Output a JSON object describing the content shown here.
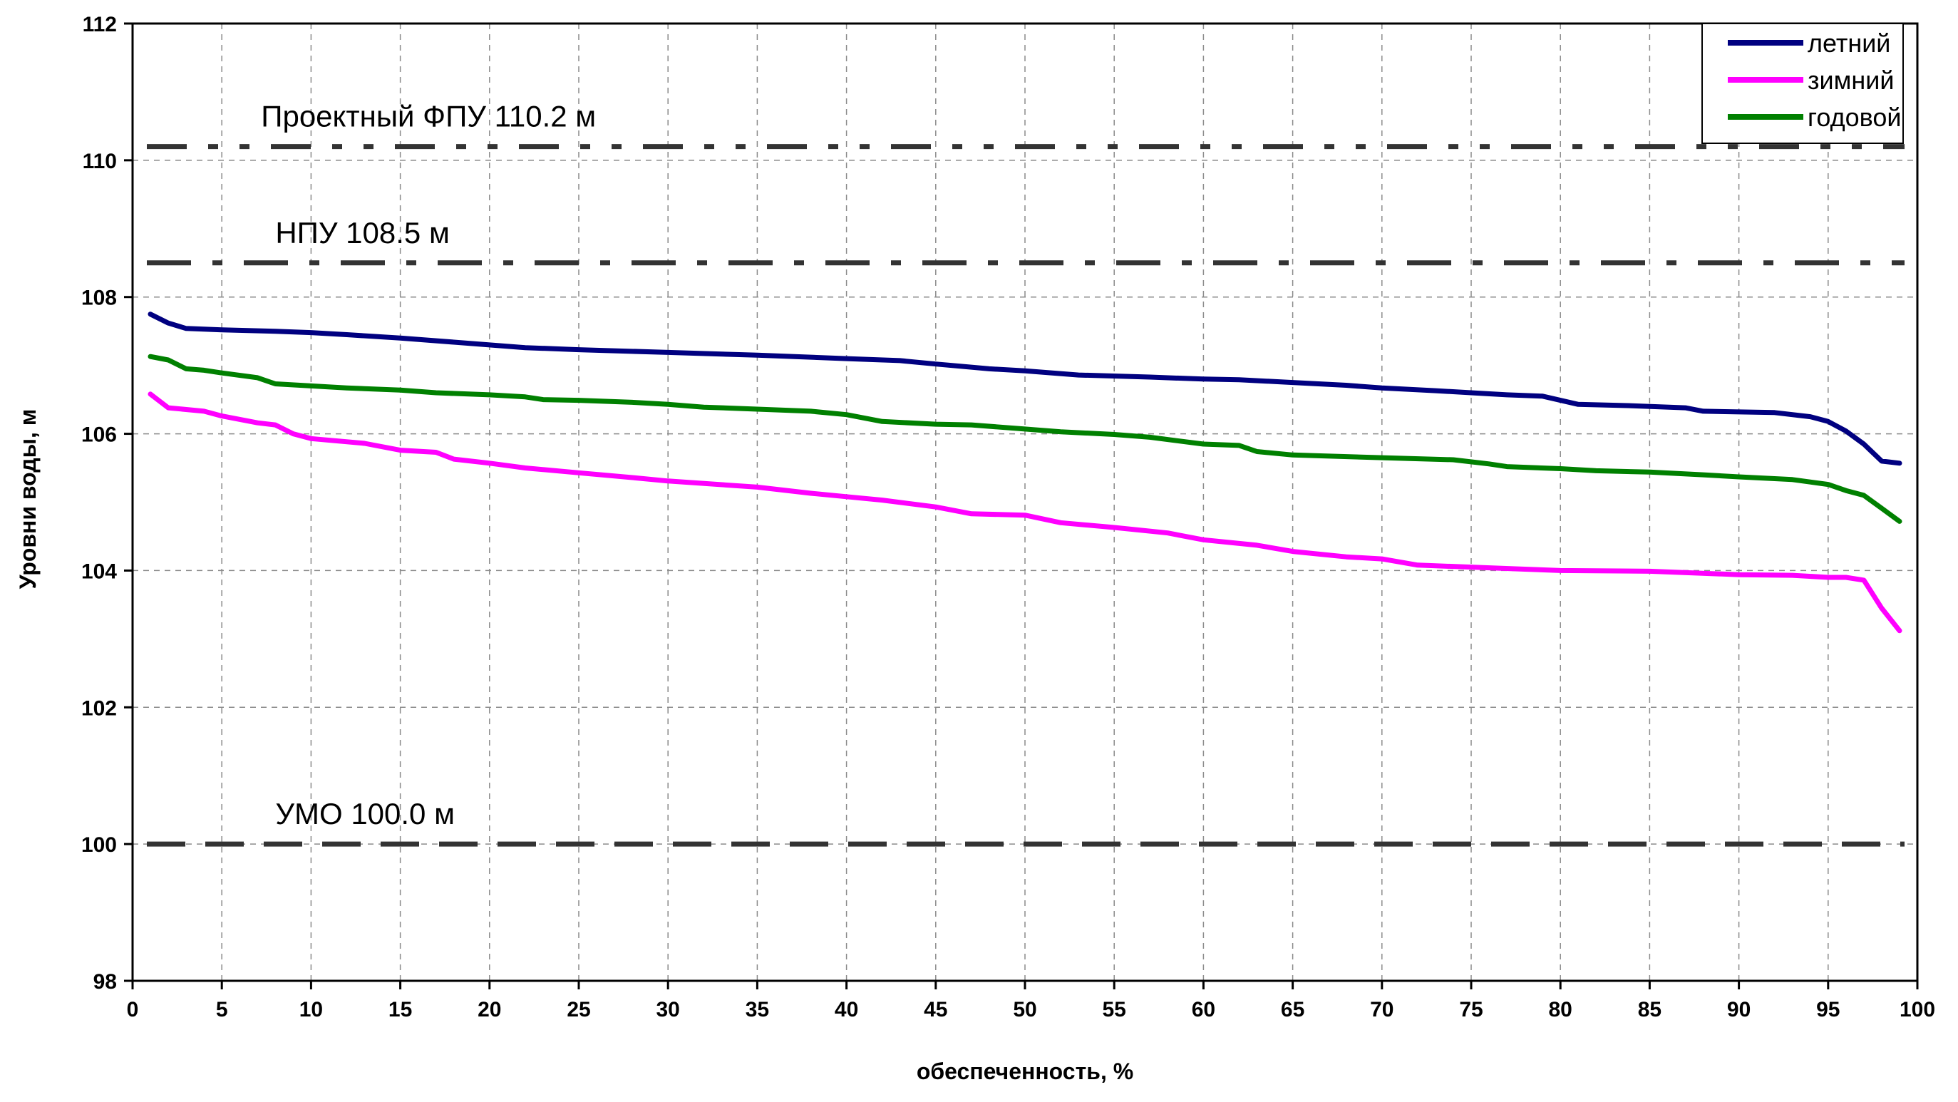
{
  "chart_data": {
    "type": "line",
    "xlabel": "обеспеченность, %",
    "ylabel": "Уровни воды, м",
    "xlim": [
      0,
      100
    ],
    "ylim": [
      98,
      112
    ],
    "xticks": [
      0,
      5,
      10,
      15,
      20,
      25,
      30,
      35,
      40,
      45,
      50,
      55,
      60,
      65,
      70,
      75,
      80,
      85,
      90,
      95,
      100
    ],
    "yticks": [
      98,
      100,
      102,
      104,
      106,
      108,
      110,
      112
    ],
    "grid": true,
    "legend_position": "top-right",
    "reference_lines": [
      {
        "label": "Проектный ФПУ 110.2 м",
        "y": 110.2,
        "style": "dash-dot-dot",
        "color": "#333333"
      },
      {
        "label": "НПУ 108.5 м",
        "y": 108.5,
        "style": "dash-dot",
        "color": "#333333"
      },
      {
        "label": "УМО 100.0 м",
        "y": 100.0,
        "style": "dash",
        "color": "#333333"
      }
    ],
    "series": [
      {
        "name": "летний",
        "color": "#000080",
        "points": [
          [
            1,
            107.75
          ],
          [
            2,
            107.62
          ],
          [
            3,
            107.54
          ],
          [
            5,
            107.52
          ],
          [
            8,
            107.5
          ],
          [
            10,
            107.48
          ],
          [
            12,
            107.45
          ],
          [
            15,
            107.4
          ],
          [
            18,
            107.34
          ],
          [
            20,
            107.3
          ],
          [
            22,
            107.26
          ],
          [
            25,
            107.23
          ],
          [
            30,
            107.19
          ],
          [
            35,
            107.15
          ],
          [
            40,
            107.1
          ],
          [
            43,
            107.07
          ],
          [
            45,
            107.02
          ],
          [
            48,
            106.95
          ],
          [
            50,
            106.92
          ],
          [
            53,
            106.86
          ],
          [
            57,
            106.83
          ],
          [
            60,
            106.8
          ],
          [
            62,
            106.79
          ],
          [
            65,
            106.75
          ],
          [
            68,
            106.71
          ],
          [
            70,
            106.67
          ],
          [
            73,
            106.63
          ],
          [
            75,
            106.6
          ],
          [
            77,
            106.57
          ],
          [
            79,
            106.55
          ],
          [
            81,
            106.43
          ],
          [
            84,
            106.41
          ],
          [
            87,
            106.38
          ],
          [
            88,
            106.33
          ],
          [
            92,
            106.31
          ],
          [
            94,
            106.25
          ],
          [
            95,
            106.18
          ],
          [
            96,
            106.04
          ],
          [
            97,
            105.85
          ],
          [
            98,
            105.6
          ],
          [
            99,
            105.57
          ]
        ]
      },
      {
        "name": "зимний",
        "color": "#ff00ff",
        "points": [
          [
            1,
            106.58
          ],
          [
            2,
            106.38
          ],
          [
            4,
            106.33
          ],
          [
            5,
            106.26
          ],
          [
            7,
            106.16
          ],
          [
            8,
            106.13
          ],
          [
            9,
            106.0
          ],
          [
            10,
            105.93
          ],
          [
            13,
            105.86
          ],
          [
            15,
            105.76
          ],
          [
            17,
            105.73
          ],
          [
            18,
            105.63
          ],
          [
            20,
            105.57
          ],
          [
            22,
            105.5
          ],
          [
            25,
            105.43
          ],
          [
            28,
            105.36
          ],
          [
            30,
            105.31
          ],
          [
            35,
            105.22
          ],
          [
            38,
            105.13
          ],
          [
            40,
            105.08
          ],
          [
            42,
            105.03
          ],
          [
            45,
            104.93
          ],
          [
            47,
            104.83
          ],
          [
            50,
            104.81
          ],
          [
            52,
            104.7
          ],
          [
            55,
            104.63
          ],
          [
            58,
            104.55
          ],
          [
            60,
            104.45
          ],
          [
            63,
            104.37
          ],
          [
            65,
            104.28
          ],
          [
            68,
            104.2
          ],
          [
            70,
            104.17
          ],
          [
            72,
            104.08
          ],
          [
            75,
            104.05
          ],
          [
            78,
            104.02
          ],
          [
            80,
            104.0
          ],
          [
            85,
            103.99
          ],
          [
            90,
            103.94
          ],
          [
            93,
            103.93
          ],
          [
            95,
            103.9
          ],
          [
            96,
            103.9
          ],
          [
            97,
            103.86
          ],
          [
            98,
            103.45
          ],
          [
            99,
            103.12
          ]
        ]
      },
      {
        "name": "годовой",
        "color": "#008000",
        "points": [
          [
            1,
            107.13
          ],
          [
            2,
            107.08
          ],
          [
            3,
            106.95
          ],
          [
            4,
            106.93
          ],
          [
            5,
            106.89
          ],
          [
            7,
            106.82
          ],
          [
            8,
            106.73
          ],
          [
            10,
            106.7
          ],
          [
            12,
            106.67
          ],
          [
            15,
            106.64
          ],
          [
            17,
            106.6
          ],
          [
            20,
            106.57
          ],
          [
            22,
            106.54
          ],
          [
            23,
            106.5
          ],
          [
            25,
            106.49
          ],
          [
            28,
            106.46
          ],
          [
            30,
            106.43
          ],
          [
            32,
            106.39
          ],
          [
            35,
            106.36
          ],
          [
            38,
            106.33
          ],
          [
            40,
            106.28
          ],
          [
            42,
            106.18
          ],
          [
            45,
            106.14
          ],
          [
            47,
            106.13
          ],
          [
            50,
            106.07
          ],
          [
            52,
            106.03
          ],
          [
            55,
            105.99
          ],
          [
            57,
            105.95
          ],
          [
            60,
            105.85
          ],
          [
            62,
            105.83
          ],
          [
            63,
            105.74
          ],
          [
            65,
            105.69
          ],
          [
            70,
            105.65
          ],
          [
            74,
            105.62
          ],
          [
            76,
            105.56
          ],
          [
            77,
            105.52
          ],
          [
            80,
            105.49
          ],
          [
            82,
            105.46
          ],
          [
            85,
            105.44
          ],
          [
            88,
            105.4
          ],
          [
            90,
            105.37
          ],
          [
            93,
            105.33
          ],
          [
            95,
            105.26
          ],
          [
            96,
            105.17
          ],
          [
            97,
            105.1
          ],
          [
            98,
            104.91
          ],
          [
            99,
            104.72
          ]
        ]
      }
    ]
  }
}
